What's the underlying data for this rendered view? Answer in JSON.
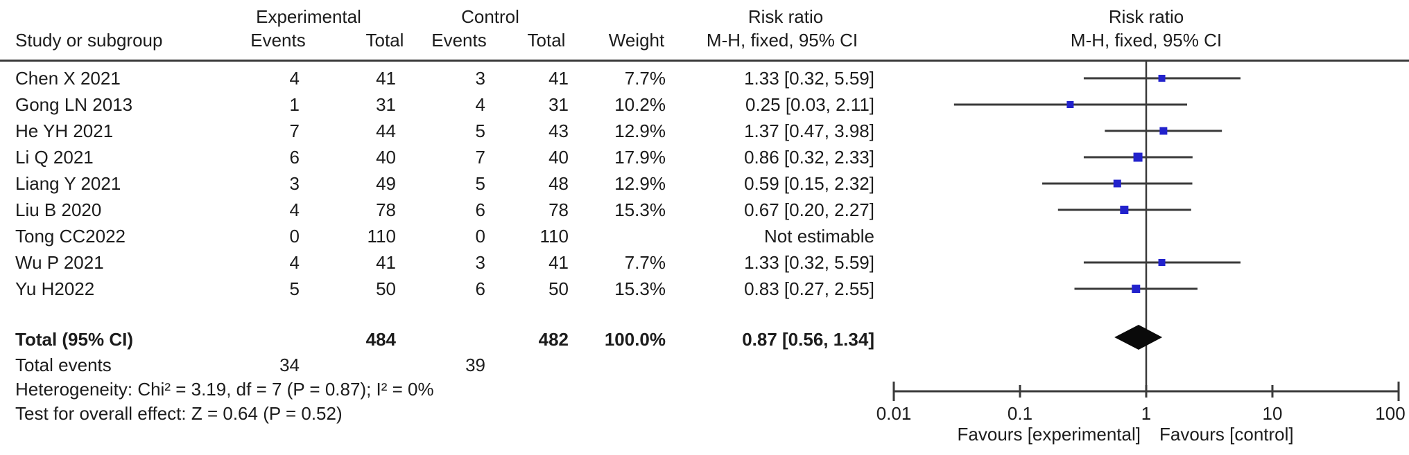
{
  "colors": {
    "marker_blue": "#2222cc",
    "diamond_black": "#0a0a0a",
    "line_gray": "#3a3a3a",
    "text": "#1c1c1c"
  },
  "header": {
    "group_experimental": "Experimental",
    "group_control": "Control",
    "col_study": "Study or subgroup",
    "col_events_exp": "Events",
    "col_total_exp": "Total",
    "col_events_ctrl": "Events",
    "col_total_ctrl": "Total",
    "col_weight": "Weight",
    "col_rr_line1": "Risk ratio",
    "col_rr_line2": "M-H, fixed, 95% CI",
    "plot_title_line1": "Risk ratio",
    "plot_title_line2": "M-H, fixed, 95% CI"
  },
  "chart_data": {
    "type": "forest",
    "effect_measure": "Risk ratio, M-H, fixed, 95% CI",
    "x_axis": {
      "scale": "log10",
      "ticks": [
        0.01,
        0.1,
        1,
        10,
        100
      ],
      "tick_labels": [
        "0.01",
        "0.1",
        "1",
        "10",
        "100"
      ],
      "center_line": 1,
      "left_label": "Favours [experimental]",
      "right_label": "Favours [control]"
    },
    "studies": [
      {
        "name": "Chen X 2021",
        "exp_events": "4",
        "exp_total": "41",
        "ctrl_events": "3",
        "ctrl_total": "41",
        "weight": "7.7%",
        "weight_pct": 7.7,
        "rr_text": "1.33 [0.32, 5.59]",
        "rr": 1.33,
        "ci_low": 0.32,
        "ci_high": 5.59,
        "estimable": true
      },
      {
        "name": "Gong LN 2013",
        "exp_events": "1",
        "exp_total": "31",
        "ctrl_events": "4",
        "ctrl_total": "31",
        "weight": "10.2%",
        "weight_pct": 10.2,
        "rr_text": "0.25 [0.03, 2.11]",
        "rr": 0.25,
        "ci_low": 0.03,
        "ci_high": 2.11,
        "estimable": true
      },
      {
        "name": "He YH 2021",
        "exp_events": "7",
        "exp_total": "44",
        "ctrl_events": "5",
        "ctrl_total": "43",
        "weight": "12.9%",
        "weight_pct": 12.9,
        "rr_text": "1.37 [0.47, 3.98]",
        "rr": 1.37,
        "ci_low": 0.47,
        "ci_high": 3.98,
        "estimable": true
      },
      {
        "name": "Li Q 2021",
        "exp_events": "6",
        "exp_total": "40",
        "ctrl_events": "7",
        "ctrl_total": "40",
        "weight": "17.9%",
        "weight_pct": 17.9,
        "rr_text": "0.86 [0.32, 2.33]",
        "rr": 0.86,
        "ci_low": 0.32,
        "ci_high": 2.33,
        "estimable": true
      },
      {
        "name": "Liang Y 2021",
        "exp_events": "3",
        "exp_total": "49",
        "ctrl_events": "5",
        "ctrl_total": "48",
        "weight": "12.9%",
        "weight_pct": 12.9,
        "rr_text": "0.59 [0.15, 2.32]",
        "rr": 0.59,
        "ci_low": 0.15,
        "ci_high": 2.32,
        "estimable": true
      },
      {
        "name": "Liu B 2020",
        "exp_events": "4",
        "exp_total": "78",
        "ctrl_events": "6",
        "ctrl_total": "78",
        "weight": "15.3%",
        "weight_pct": 15.3,
        "rr_text": "0.67 [0.20, 2.27]",
        "rr": 0.67,
        "ci_low": 0.2,
        "ci_high": 2.27,
        "estimable": true
      },
      {
        "name": "Tong CC2022",
        "exp_events": "0",
        "exp_total": "110",
        "ctrl_events": "0",
        "ctrl_total": "110",
        "weight": "",
        "weight_pct": 0,
        "rr_text": "Not estimable",
        "rr": null,
        "ci_low": null,
        "ci_high": null,
        "estimable": false
      },
      {
        "name": "Wu P 2021",
        "exp_events": "4",
        "exp_total": "41",
        "ctrl_events": "3",
        "ctrl_total": "41",
        "weight": "7.7%",
        "weight_pct": 7.7,
        "rr_text": "1.33 [0.32, 5.59]",
        "rr": 1.33,
        "ci_low": 0.32,
        "ci_high": 5.59,
        "estimable": true
      },
      {
        "name": "Yu H2022",
        "exp_events": "5",
        "exp_total": "50",
        "ctrl_events": "6",
        "ctrl_total": "50",
        "weight": "15.3%",
        "weight_pct": 15.3,
        "rr_text": "0.83 [0.27, 2.55]",
        "rr": 0.83,
        "ci_low": 0.27,
        "ci_high": 2.55,
        "estimable": true
      }
    ],
    "total": {
      "label": "Total (95% CI)",
      "exp_total": "484",
      "ctrl_total": "482",
      "weight": "100.0%",
      "rr_text": "0.87 [0.56, 1.34]",
      "rr": 0.87,
      "ci_low": 0.56,
      "ci_high": 1.34
    },
    "total_events": {
      "label": "Total events",
      "exp": "34",
      "ctrl": "39"
    },
    "heterogeneity": "Heterogeneity: Chi² = 3.19, df = 7 (P = 0.87); I² = 0%",
    "overall_effect": "Test for overall effect: Z = 0.64 (P = 0.52)"
  }
}
